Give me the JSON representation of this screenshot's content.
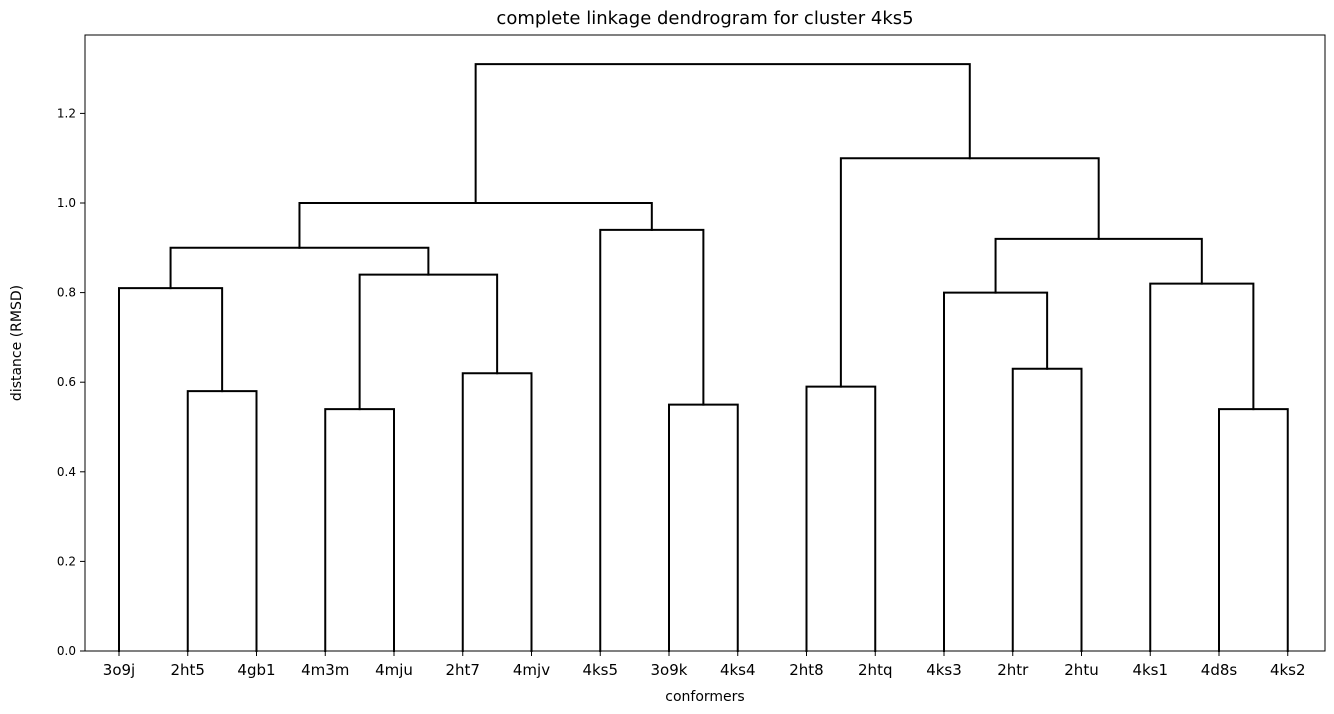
{
  "chart_data": {
    "type": "dendrogram",
    "title": "complete linkage dendrogram for cluster 4ks5",
    "xlabel": "conformers",
    "ylabel": "distance (RMSD)",
    "ylim": [
      0,
      1.375
    ],
    "yticks": [
      "0.0",
      "0.2",
      "0.4",
      "0.6",
      "0.8",
      "1.0",
      "1.2"
    ],
    "ytick_values": [
      0,
      0.2,
      0.4,
      0.6,
      0.8,
      1.0,
      1.2
    ],
    "grid": false,
    "line_color": "#000000",
    "leaves": [
      "3o9j",
      "2ht5",
      "4gb1",
      "4m3m",
      "4mju",
      "2ht7",
      "4mjv",
      "4ks5",
      "3o9k",
      "4ks4",
      "2ht8",
      "2htq",
      "4ks3",
      "2htr",
      "2htu",
      "4ks1",
      "4d8s",
      "4ks2"
    ],
    "merges": [
      {
        "left": "2ht5",
        "right": "4gb1",
        "height": 0.58
      },
      {
        "left": "3o9j",
        "right": "2ht5+4gb1",
        "height": 0.81
      },
      {
        "left": "4m3m",
        "right": "4mju",
        "height": 0.54
      },
      {
        "left": "2ht7",
        "right": "4mjv",
        "height": 0.62
      },
      {
        "left": "4m3m+4mju",
        "right": "2ht7+4mjv",
        "height": 0.84
      },
      {
        "left": "3o9j+2ht5+4gb1",
        "right": "4m3m+4mju+2ht7+4mjv",
        "height": 0.9
      },
      {
        "left": "3o9k",
        "right": "4ks4",
        "height": 0.55
      },
      {
        "left": "4ks5",
        "right": "3o9k+4ks4",
        "height": 0.94
      },
      {
        "left": "3o9j..4mjv",
        "right": "4ks5+3o9k+4ks4",
        "height": 1.0
      },
      {
        "left": "2ht8",
        "right": "2htq",
        "height": 0.59
      },
      {
        "left": "2htr",
        "right": "2htu",
        "height": 0.63
      },
      {
        "left": "4ks3",
        "right": "2htr+2htu",
        "height": 0.8
      },
      {
        "left": "4d8s",
        "right": "4ks2",
        "height": 0.54
      },
      {
        "left": "4ks1",
        "right": "4d8s+4ks2",
        "height": 0.82
      },
      {
        "left": "4ks3+2htr+2htu",
        "right": "4ks1+4d8s+4ks2",
        "height": 0.92
      },
      {
        "left": "2ht8+2htq",
        "right": "4ks3..4ks2",
        "height": 1.1
      },
      {
        "left": "3o9j..4ks4",
        "right": "2ht8..4ks2",
        "height": 1.31
      }
    ]
  }
}
